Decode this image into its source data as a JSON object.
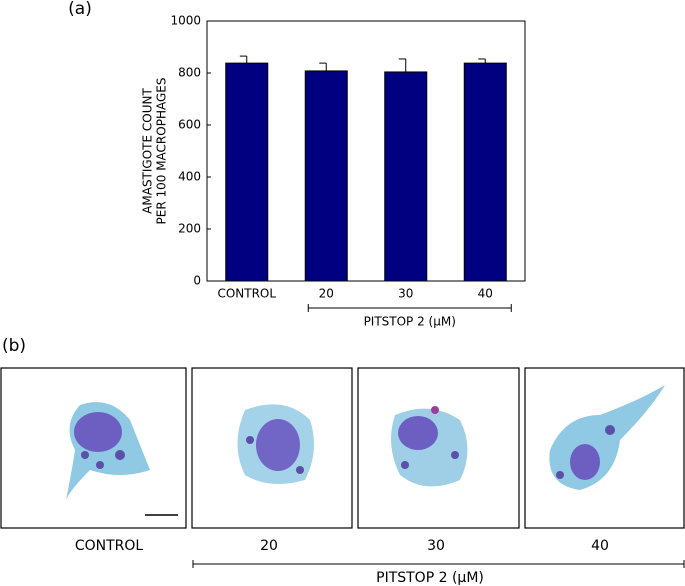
{
  "chart_data": {
    "type": "bar",
    "panel_label": "(a)",
    "ylabel": [
      "AMASTIGOTE COUNT",
      "PER 100 MACROPHAGES"
    ],
    "categories": [
      "CONTROL",
      "20",
      "30",
      "40"
    ],
    "values": [
      838,
      808,
      804,
      838
    ],
    "errors": [
      27,
      30,
      50,
      16
    ],
    "color": "#000080",
    "group_label": "PITSTOP 2 (μM)",
    "ylim": [
      0,
      1000
    ],
    "yticks": [
      0,
      200,
      400,
      600,
      800,
      1000
    ]
  },
  "panel_b": {
    "panel_label": "(b)",
    "labels": [
      "CONTROL",
      "20",
      "30",
      "40"
    ],
    "group_label": "PITSTOP 2 (μM)"
  }
}
